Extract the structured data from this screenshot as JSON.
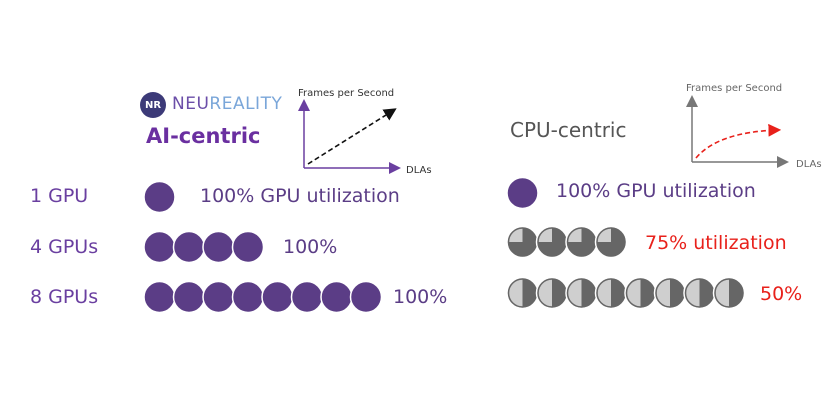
{
  "left": {
    "brand_badge": "NR",
    "brand_neu": "NEU",
    "brand_reality": "REALITY",
    "title": "AI-centric",
    "chart_ylabel": "Frames per Second",
    "chart_xlabel": "DLAs",
    "rows": [
      {
        "label": "1 GPU",
        "gpus": 1,
        "utilization": 1.0,
        "text": "100% GPU utilization"
      },
      {
        "label": "4 GPUs",
        "gpus": 4,
        "utilization": 1.0,
        "text": "100%"
      },
      {
        "label": "8 GPUs",
        "gpus": 8,
        "utilization": 1.0,
        "text": "100%"
      }
    ]
  },
  "right": {
    "title": "CPU-centric",
    "chart_ylabel": "Frames per Second",
    "chart_xlabel": "DLAs",
    "rows": [
      {
        "gpus": 1,
        "utilization": 1.0,
        "text": "100% GPU utilization"
      },
      {
        "gpus": 4,
        "utilization": 0.75,
        "text": "75% utilization"
      },
      {
        "gpus": 8,
        "utilization": 0.5,
        "text": "50%"
      }
    ]
  },
  "colors": {
    "full_gpu": "#5b3d86",
    "partial_gpu": "#666666",
    "empty_gpu": "#cfcfcf",
    "ai_line": "#111111",
    "cpu_line": "#e8211b",
    "accent_text": "#6a3fa0",
    "warn_text": "#e8211b"
  }
}
